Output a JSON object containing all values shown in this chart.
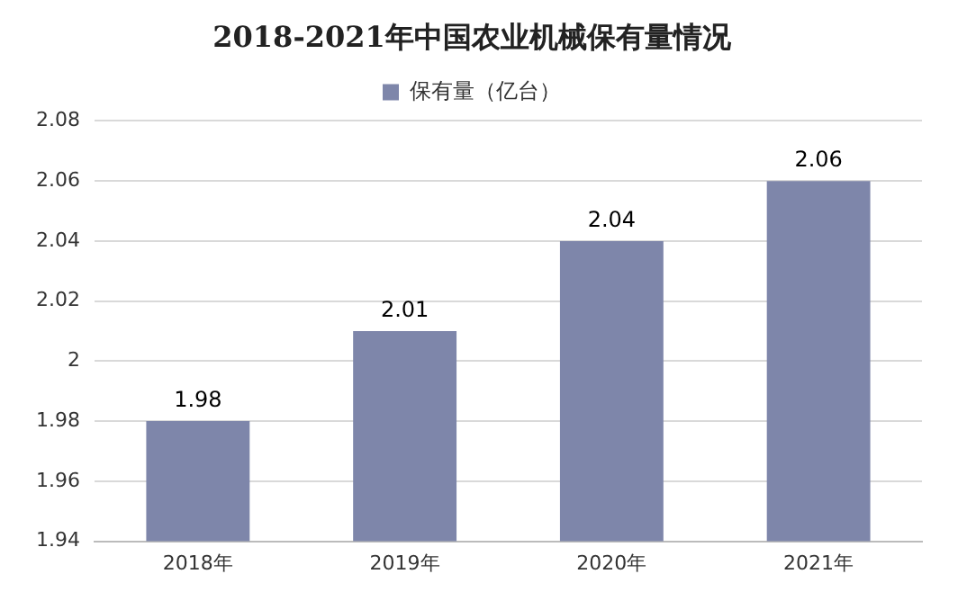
{
  "chart_data": {
    "type": "bar",
    "title": "2018-2021年中国农业机械保有量情况",
    "categories": [
      "2018年",
      "2019年",
      "2020年",
      "2021年"
    ],
    "series": [
      {
        "name": "保有量（亿台）",
        "color": "#7e86aa",
        "values": [
          1.98,
          2.01,
          2.04,
          2.06
        ]
      }
    ],
    "ylim": [
      1.94,
      2.08
    ],
    "yticks": [
      1.94,
      1.96,
      1.98,
      2,
      2.02,
      2.04,
      2.06,
      2.08
    ],
    "grid": "y",
    "legend": "top",
    "data_labels": true
  }
}
